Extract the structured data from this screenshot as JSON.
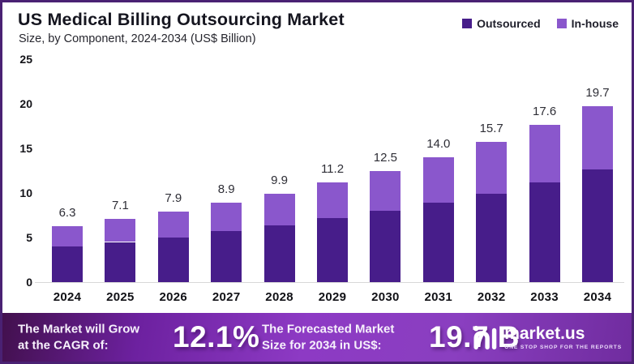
{
  "header": {
    "title": "US Medical Billing Outsourcing Market",
    "subtitle": "Size, by Component, 2024-2034 (US$ Billion)"
  },
  "chart_data": {
    "type": "bar",
    "stacked": true,
    "title": "US Medical Billing Outsourcing Market",
    "subtitle": "Size, by Component, 2024-2034 (US$ Billion)",
    "categories": [
      "2024",
      "2025",
      "2026",
      "2027",
      "2028",
      "2029",
      "2030",
      "2031",
      "2032",
      "2033",
      "2034"
    ],
    "series": [
      {
        "name": "Outsourced",
        "color": "#471d8a",
        "values": [
          4.0,
          4.5,
          5.0,
          5.7,
          6.4,
          7.2,
          8.0,
          8.9,
          9.9,
          11.2,
          12.6
        ]
      },
      {
        "name": "In-house",
        "color": "#8a57cc",
        "values": [
          2.3,
          2.6,
          2.9,
          3.2,
          3.5,
          4.0,
          4.5,
          5.1,
          5.8,
          6.4,
          7.1
        ]
      }
    ],
    "totals": [
      6.3,
      7.1,
      7.9,
      8.9,
      9.9,
      11.2,
      12.5,
      14.0,
      15.7,
      17.6,
      19.7
    ],
    "total_labels": [
      "6.3",
      "7.1",
      "7.9",
      "8.9",
      "9.9",
      "11.2",
      "12.5",
      "14.0",
      "15.7",
      "17.6",
      "19.7"
    ],
    "y_ticks": [
      0,
      5,
      10,
      15,
      20,
      25
    ],
    "ylim": [
      0,
      25
    ],
    "xlabel": "",
    "ylabel": "US$ Billion",
    "grid": false,
    "legend_position": "top-right"
  },
  "footer": {
    "cagr_label_line1": "The Market will Grow",
    "cagr_label_line2": "at the CAGR of:",
    "cagr_value": "12.1%",
    "forecast_label_line1": "The Forecasted Market",
    "forecast_label_line2": "Size for 2034 in US$:",
    "forecast_value": "19.7 B",
    "brand": "market.us",
    "brand_tagline": "ONE STOP SHOP FOR THE REPORTS"
  },
  "colors": {
    "outsourced": "#471d8a",
    "in_house": "#8a57cc",
    "frame_border": "#4a2173",
    "banner_gradient_start": "#42104d",
    "banner_gradient_mid": "#8d3ac4",
    "banner_gradient_end": "#702c9f"
  }
}
